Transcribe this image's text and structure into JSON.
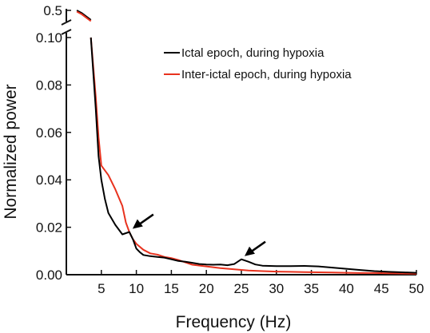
{
  "chart_data": {
    "type": "line",
    "title": "",
    "xlabel": "Frequency (Hz)",
    "ylabel": "Normalized power",
    "xlim": [
      0,
      50
    ],
    "ylim": [
      0,
      0.1
    ],
    "y_break": true,
    "y_top_tick": 0.5,
    "grid": false,
    "legend": "top-right",
    "x_ticks": [
      5,
      10,
      15,
      20,
      25,
      30,
      35,
      40,
      45,
      50
    ],
    "y_ticks": [
      {
        "value": 0.0,
        "label": "0.00"
      },
      {
        "value": 0.02,
        "label": "0.02"
      },
      {
        "value": 0.04,
        "label": "0.04"
      },
      {
        "value": 0.06,
        "label": "0.06"
      },
      {
        "value": 0.08,
        "label": "0.08"
      },
      {
        "value": 0.1,
        "label": "0.10"
      }
    ],
    "y_top_label": "0.5",
    "series": [
      {
        "name": "Ictal epoch, during hypoxia",
        "color": "#000000",
        "x": [
          3.5,
          4.2,
          4.6,
          5,
          5.5,
          6,
          7,
          8,
          9,
          9.5,
          10,
          10.5,
          11,
          12,
          13,
          14,
          15,
          16,
          17,
          18,
          19,
          20,
          21,
          22,
          23,
          24,
          25,
          26,
          27,
          28,
          30,
          32,
          34,
          36,
          38,
          40,
          42,
          44,
          46,
          48,
          50
        ],
        "y": [
          0.1,
          0.07,
          0.05,
          0.04,
          0.032,
          0.026,
          0.021,
          0.017,
          0.018,
          0.015,
          0.011,
          0.0095,
          0.0083,
          0.0078,
          0.0075,
          0.0072,
          0.0065,
          0.0058,
          0.0055,
          0.005,
          0.0045,
          0.0043,
          0.0042,
          0.0043,
          0.004,
          0.0045,
          0.0065,
          0.0055,
          0.0043,
          0.0038,
          0.0036,
          0.0036,
          0.0037,
          0.0035,
          0.003,
          0.0025,
          0.002,
          0.0015,
          0.0012,
          0.001,
          0.0008
        ]
      },
      {
        "name": "Inter-ictal epoch, during hypoxia",
        "color": "#e8321e",
        "x": [
          3.5,
          4.2,
          4.6,
          5,
          5.5,
          6,
          7,
          8,
          8.5,
          9,
          9.5,
          10,
          11,
          12,
          13,
          14,
          15,
          16,
          17,
          18,
          20,
          22,
          24,
          26,
          28,
          30,
          32,
          34,
          36,
          38,
          40,
          42,
          44,
          46,
          48,
          50
        ],
        "y": [
          0.1,
          0.075,
          0.058,
          0.046,
          0.044,
          0.042,
          0.036,
          0.029,
          0.022,
          0.018,
          0.015,
          0.013,
          0.0105,
          0.009,
          0.0085,
          0.0075,
          0.007,
          0.0062,
          0.0052,
          0.0042,
          0.0035,
          0.0028,
          0.0023,
          0.0018,
          0.0015,
          0.0013,
          0.0012,
          0.0011,
          0.001,
          0.0009,
          0.0008,
          0.0007,
          0.0007,
          0.0006,
          0.0005,
          0.0004
        ]
      }
    ],
    "top_segment": {
      "x": [
        1.5,
        2.2,
        3.5
      ],
      "y_offsets": [
        0.5,
        0.46,
        0.36
      ]
    },
    "annotations": [
      {
        "type": "arrow",
        "points_to_x": 9,
        "points_to_y": 0.018,
        "series": "Ictal epoch, during hypoxia"
      },
      {
        "type": "arrow",
        "points_to_x": 25,
        "points_to_y": 0.0065,
        "series": "Ictal epoch, during hypoxia"
      }
    ]
  }
}
